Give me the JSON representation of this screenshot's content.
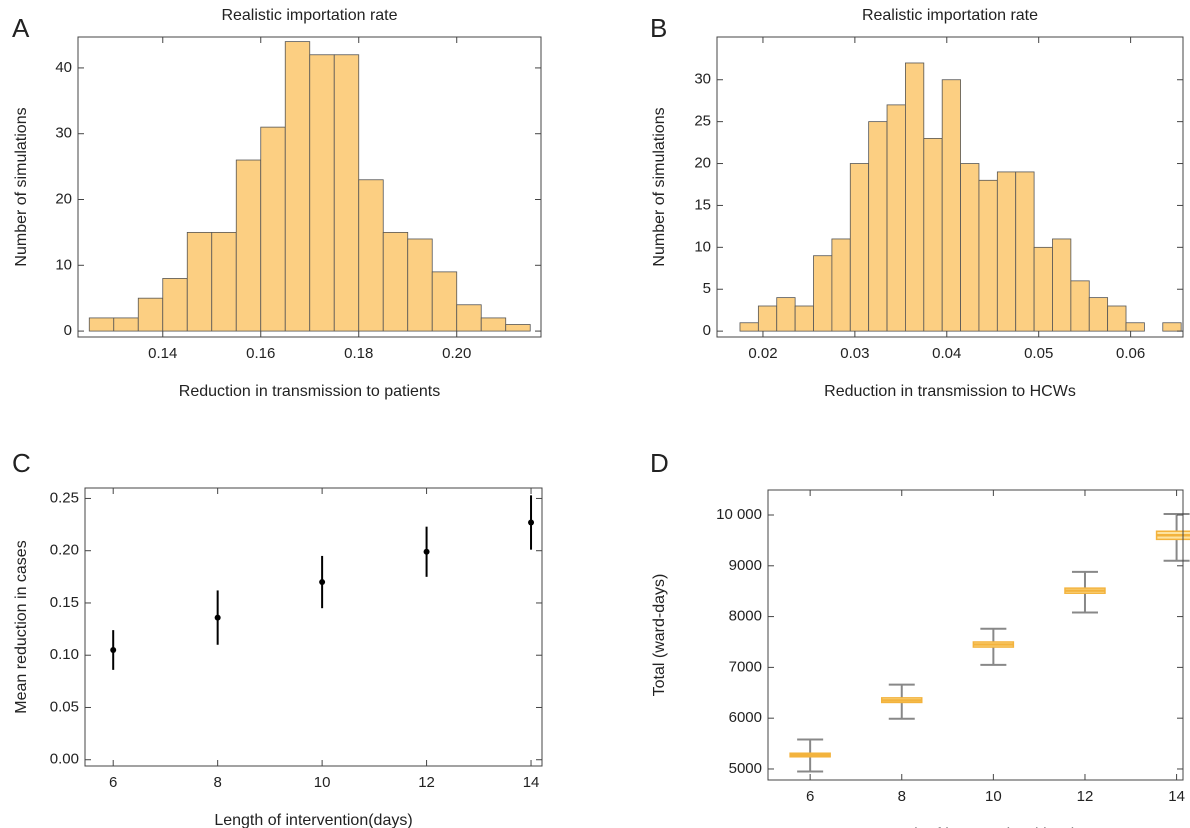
{
  "chart_data": [
    {
      "type": "histogram",
      "panel": "A",
      "title": "Realistic importation rate",
      "xlabel": "Reduction in transmission to patients",
      "ylabel": "Number of simulations",
      "bins": [
        0.125,
        0.13,
        0.135,
        0.14,
        0.145,
        0.15,
        0.155,
        0.16,
        0.165,
        0.17,
        0.175,
        0.18,
        0.185,
        0.19,
        0.195,
        0.2,
        0.205,
        0.21,
        0.215
      ],
      "values": [
        2,
        2,
        5,
        8,
        15,
        15,
        26,
        31,
        44,
        42,
        42,
        23,
        15,
        14,
        9,
        4,
        2,
        1
      ],
      "color": "#fccf82",
      "xlim": [
        0.1227,
        0.2172
      ],
      "ylim": [
        -0.9,
        44.7
      ],
      "xticks": [
        0.14,
        0.16,
        0.18,
        {
          "value": 0.2,
          "label": "0.20"
        }
      ],
      "yticks": [
        0,
        10,
        20,
        30,
        40
      ]
    },
    {
      "type": "histogram",
      "panel": "B",
      "title": "Realistic importation rate",
      "xlabel": "Reduction in transmission to HCWs",
      "ylabel": "Number of simulations",
      "bins": [
        0.0175,
        0.0195,
        0.0215,
        0.0235,
        0.0255,
        0.0275,
        0.0295,
        0.0315,
        0.0335,
        0.0355,
        0.0375,
        0.0395,
        0.0415,
        0.0435,
        0.0455,
        0.0475,
        0.0495,
        0.0515,
        0.0535,
        0.0555,
        0.0575,
        0.0595,
        0.0615,
        0.0635,
        0.0655
      ],
      "values": [
        1,
        3,
        4,
        3,
        9,
        11,
        20,
        25,
        27,
        32,
        23,
        30,
        20,
        18,
        19,
        19,
        10,
        11,
        6,
        4,
        3,
        1,
        0,
        1
      ],
      "color": "#fccf82",
      "xlim": [
        0.015,
        0.0657
      ],
      "ylim": [
        -0.7,
        35.1
      ],
      "xticks": [
        0.02,
        0.03,
        0.04,
        0.05,
        0.06
      ],
      "yticks": [
        0,
        5,
        10,
        15,
        20,
        25,
        30
      ]
    },
    {
      "type": "errorbar",
      "panel": "C",
      "xlabel": "Length of intervention(days)",
      "ylabel": "Mean reduction in cases",
      "x": [
        6,
        8,
        10,
        12,
        14
      ],
      "values": [
        0.105,
        0.136,
        0.17,
        0.199,
        0.227
      ],
      "errors": [
        0.019,
        0.026,
        0.025,
        0.024,
        0.026
      ],
      "color": "#000000",
      "xlim": [
        5.46,
        14.21
      ],
      "ylim": [
        -0.006,
        0.26
      ],
      "xticks": [
        6,
        8,
        10,
        12,
        14
      ],
      "yticks": [
        {
          "value": 0,
          "label": "0.00"
        },
        0.05,
        {
          "value": 0.1,
          "label": "0.10"
        },
        0.15,
        {
          "value": 0.2,
          "label": "0.20"
        },
        0.25
      ]
    },
    {
      "type": "boxplot",
      "panel": "D",
      "xlabel": "Length of intervention (days)",
      "ylabel": "Total (ward-days)",
      "x": [
        6,
        8,
        10,
        12,
        14
      ],
      "min": [
        4950,
        5990,
        7050,
        8080,
        9100
      ],
      "q1": [
        5240,
        6310,
        7400,
        8460,
        9520
      ],
      "median": [
        5270,
        6350,
        7450,
        8510,
        9600
      ],
      "q3": [
        5310,
        6400,
        7500,
        8560,
        9680
      ],
      "max": [
        5580,
        6660,
        7760,
        8880,
        10020
      ],
      "color": "#fde3a0",
      "median_color": "#f3b33d",
      "whisker_color": "#888888",
      "xlim": [
        5.08,
        14.14
      ],
      "ylim": [
        4783,
        10492
      ],
      "xticks": [
        6,
        8,
        10,
        12,
        14
      ],
      "yticks": [
        5000,
        6000,
        7000,
        8000,
        9000,
        {
          "value": 10000,
          "label": "10 000"
        }
      ]
    }
  ]
}
